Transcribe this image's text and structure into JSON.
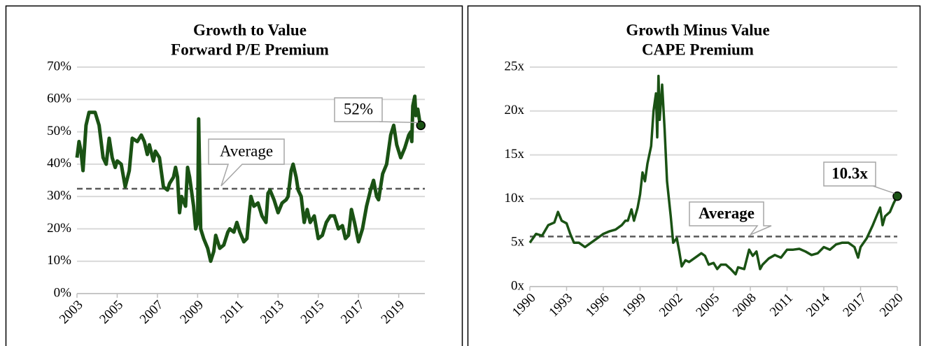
{
  "chart_data": [
    {
      "type": "line",
      "title": [
        "Growth to Value",
        "Forward P/E Premium"
      ],
      "color": "#1a5214",
      "grid": true,
      "xlim": [
        2003,
        2020.3
      ],
      "xticks": [
        2003,
        2005,
        2007,
        2009,
        2011,
        2013,
        2015,
        2017,
        2019
      ],
      "ylim": [
        0,
        70
      ],
      "yticks": [
        {
          "value": 0,
          "label": "0%"
        },
        {
          "value": 10,
          "label": "10%"
        },
        {
          "value": 20,
          "label": "20%"
        },
        {
          "value": 30,
          "label": "30%"
        },
        {
          "value": 40,
          "label": "40%"
        },
        {
          "value": 50,
          "label": "50%"
        },
        {
          "value": 60,
          "label": "60%"
        },
        {
          "value": 70,
          "label": "70%"
        }
      ],
      "average": 32.4,
      "average_label": "Average",
      "end_label": "52%",
      "x": [
        2003.0,
        2003.1,
        2003.2,
        2003.3,
        2003.45,
        2003.6,
        2003.9,
        2004.1,
        2004.3,
        2004.45,
        2004.6,
        2004.75,
        2004.9,
        2005.0,
        2005.2,
        2005.4,
        2005.6,
        2005.75,
        2006.0,
        2006.2,
        2006.35,
        2006.5,
        2006.6,
        2006.8,
        2006.9,
        2007.1,
        2007.3,
        2007.5,
        2007.6,
        2007.8,
        2007.9,
        2008.0,
        2008.1,
        2008.2,
        2008.4,
        2008.5,
        2008.6,
        2008.8,
        2008.9,
        2009.0,
        2009.05,
        2009.15,
        2009.3,
        2009.5,
        2009.65,
        2009.8,
        2009.9,
        2010.1,
        2010.3,
        2010.5,
        2010.6,
        2010.8,
        2010.95,
        2011.1,
        2011.3,
        2011.45,
        2011.55,
        2011.65,
        2011.8,
        2012.0,
        2012.2,
        2012.4,
        2012.5,
        2012.6,
        2012.8,
        2013.0,
        2013.2,
        2013.4,
        2013.5,
        2013.65,
        2013.75,
        2013.9,
        2014.0,
        2014.15,
        2014.3,
        2014.45,
        2014.6,
        2014.8,
        2015.0,
        2015.2,
        2015.4,
        2015.6,
        2015.8,
        2016.0,
        2016.2,
        2016.35,
        2016.5,
        2016.65,
        2016.8,
        2017.0,
        2017.2,
        2017.4,
        2017.6,
        2017.75,
        2017.9,
        2018.0,
        2018.2,
        2018.4,
        2018.6,
        2018.75,
        2018.9,
        2019.1,
        2019.3,
        2019.5,
        2019.6,
        2019.65,
        2019.7,
        2019.8,
        2019.85,
        2019.95,
        2020.05,
        2020.1
      ],
      "values": [
        42,
        47,
        44,
        38,
        52,
        56,
        56,
        52,
        42,
        40,
        48,
        42,
        39,
        41,
        40,
        33,
        38,
        48,
        47,
        49,
        47,
        43,
        46,
        41,
        44,
        42,
        33,
        32,
        34,
        36,
        39,
        36,
        25,
        30,
        27,
        39,
        36,
        27,
        20,
        22,
        54,
        20,
        17,
        14,
        10,
        13,
        18,
        14,
        15,
        19,
        20,
        19,
        22,
        19,
        16,
        17,
        24,
        30,
        27,
        28,
        24,
        22,
        31,
        32,
        29,
        25,
        28,
        29,
        30,
        38,
        40,
        36,
        32,
        30,
        22,
        26,
        22,
        24,
        17,
        18,
        22,
        24,
        24,
        20,
        21,
        17,
        18,
        26,
        22,
        16,
        20,
        27,
        32,
        35,
        30,
        29,
        37,
        40,
        49,
        52,
        46,
        42,
        45,
        49,
        50,
        47,
        58,
        61,
        55,
        57,
        53,
        52
      ]
    },
    {
      "type": "line",
      "title": [
        "Growth Minus Value",
        "CAPE Premium"
      ],
      "color": "#1a5214",
      "grid": true,
      "xlim": [
        1990,
        2020
      ],
      "xticks": [
        1990,
        1993,
        1996,
        1999,
        2002,
        2005,
        2008,
        2011,
        2014,
        2017,
        2020
      ],
      "ylim": [
        0,
        25
      ],
      "yticks": [
        {
          "value": 0,
          "label": "0x"
        },
        {
          "value": 5,
          "label": "5x"
        },
        {
          "value": 10,
          "label": "10x"
        },
        {
          "value": 15,
          "label": "15x"
        },
        {
          "value": 20,
          "label": "20x"
        },
        {
          "value": 25,
          "label": "25x"
        }
      ],
      "average": 5.7,
      "average_label": "Average",
      "end_label": "10.3x",
      "x": [
        1990,
        1990.5,
        1991,
        1991.5,
        1992,
        1992.3,
        1992.6,
        1993,
        1993.3,
        1993.6,
        1994,
        1994.5,
        1995,
        1995.5,
        1996,
        1996.5,
        1997,
        1997.5,
        1997.8,
        1998,
        1998.3,
        1998.5,
        1998.8,
        1999,
        1999.2,
        1999.4,
        1999.6,
        1999.9,
        2000.1,
        2000.3,
        2000.4,
        2000.5,
        2000.6,
        2000.8,
        2001.0,
        2001.2,
        2001.5,
        2001.7,
        2002,
        2002.2,
        2002.4,
        2002.7,
        2003,
        2003.5,
        2004,
        2004.3,
        2004.6,
        2005,
        2005.3,
        2005.6,
        2006,
        2006.4,
        2006.8,
        2007,
        2007.5,
        2007.9,
        2008.2,
        2008.5,
        2008.8,
        2009,
        2009.5,
        2010,
        2010.5,
        2011,
        2011.5,
        2012,
        2012.5,
        2013,
        2013.5,
        2014,
        2014.5,
        2015,
        2015.5,
        2016,
        2016.5,
        2016.8,
        2017,
        2017.5,
        2018,
        2018.3,
        2018.6,
        2018.8,
        2019,
        2019.4,
        2019.7,
        2020
      ],
      "values": [
        5,
        6,
        5.8,
        7,
        7.3,
        8.5,
        7.5,
        7.2,
        6,
        5,
        5,
        4.5,
        5,
        5.5,
        6,
        6.3,
        6.5,
        7,
        7.5,
        7.5,
        8.8,
        7.5,
        9,
        10.5,
        13,
        12,
        14,
        16,
        20,
        22,
        17,
        24,
        19,
        23,
        18,
        12,
        8,
        5,
        5.5,
        4,
        2.3,
        3,
        2.8,
        3.3,
        3.8,
        3.5,
        2.5,
        2.7,
        2,
        2.5,
        2.5,
        2,
        1.4,
        2.2,
        2,
        4.2,
        3.5,
        4,
        2,
        2.5,
        3.2,
        3.6,
        3.3,
        4.2,
        4.2,
        4.3,
        4,
        3.6,
        3.8,
        4.5,
        4.2,
        4.8,
        5,
        5,
        4.5,
        3.3,
        4.5,
        5.5,
        7,
        8,
        9,
        7,
        8,
        8.5,
        9.5,
        10.3
      ]
    }
  ]
}
